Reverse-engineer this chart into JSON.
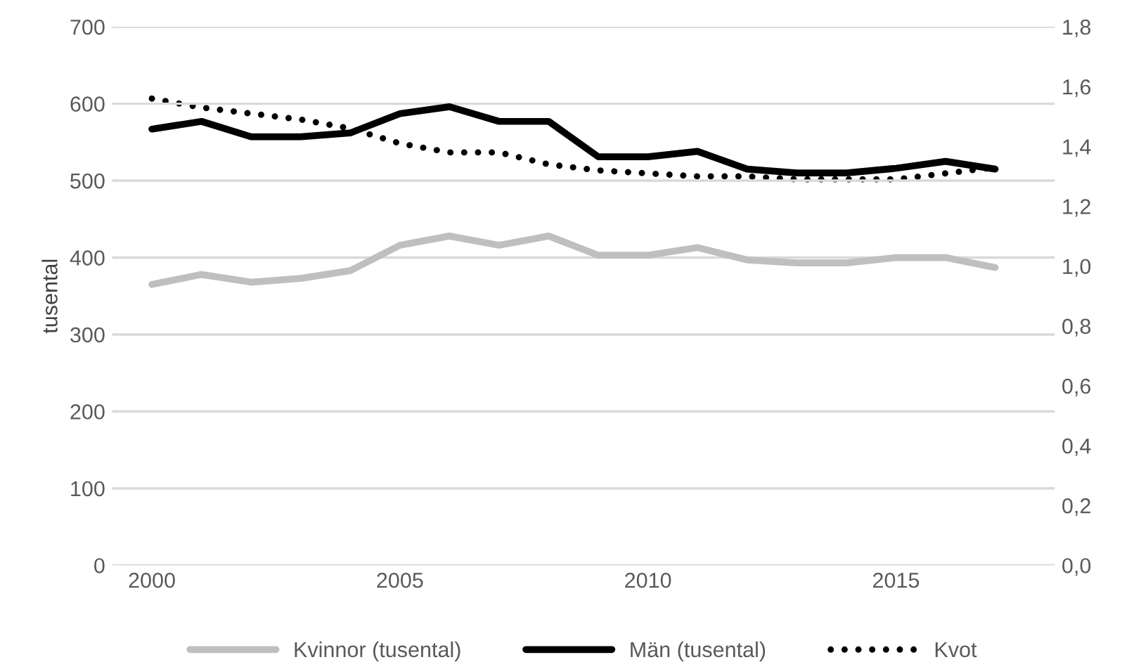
{
  "chart_data": {
    "type": "line",
    "ylabel": "tusental",
    "x": [
      2000,
      2001,
      2002,
      2003,
      2004,
      2005,
      2006,
      2007,
      2008,
      2009,
      2010,
      2011,
      2012,
      2013,
      2014,
      2015,
      2016,
      2017
    ],
    "series": [
      {
        "name": "Kvinnor (tusental)",
        "color": "#bfbfbf",
        "line_style": "solid",
        "values": [
          365,
          378,
          368,
          373,
          383,
          416,
          428,
          416,
          428,
          403,
          403,
          413,
          397,
          393,
          393,
          400,
          400,
          387
        ]
      },
      {
        "name": "Män (tusental)",
        "color": "#000000",
        "line_style": "solid",
        "values": [
          567,
          577,
          557,
          557,
          562,
          587,
          596,
          577,
          577,
          531,
          531,
          538,
          515,
          510,
          510,
          516,
          525,
          515
        ]
      },
      {
        "name": "Kvot",
        "color": "#000000",
        "line_style": "dotted",
        "axis": "y2",
        "values": [
          1.56,
          1.53,
          1.51,
          1.49,
          1.46,
          1.41,
          1.38,
          1.38,
          1.34,
          1.32,
          1.31,
          1.3,
          1.3,
          1.29,
          1.29,
          1.29,
          1.31,
          1.33
        ]
      }
    ],
    "xlim": [
      1999.2,
      2018.2
    ],
    "xticks": [
      2000,
      2005,
      2010,
      2015
    ],
    "ylim": [
      0,
      700
    ],
    "yticks": [
      0,
      100,
      200,
      300,
      400,
      500,
      600,
      700
    ],
    "y2lim": [
      0,
      1.8
    ],
    "y2ticks": [
      {
        "value": 0,
        "label": "0,0"
      },
      {
        "value": 0.2,
        "label": "0,2"
      },
      {
        "value": 0.4,
        "label": "0,4"
      },
      {
        "value": 0.6,
        "label": "0,6"
      },
      {
        "value": 0.8,
        "label": "0,8"
      },
      {
        "value": 1.0,
        "label": "1,0"
      },
      {
        "value": 1.2,
        "label": "1,2"
      },
      {
        "value": 1.4,
        "label": "1,4"
      },
      {
        "value": 1.6,
        "label": "1,6"
      },
      {
        "value": 1.8,
        "label": "1,8"
      }
    ],
    "grid": "y",
    "legend": "bottom"
  }
}
